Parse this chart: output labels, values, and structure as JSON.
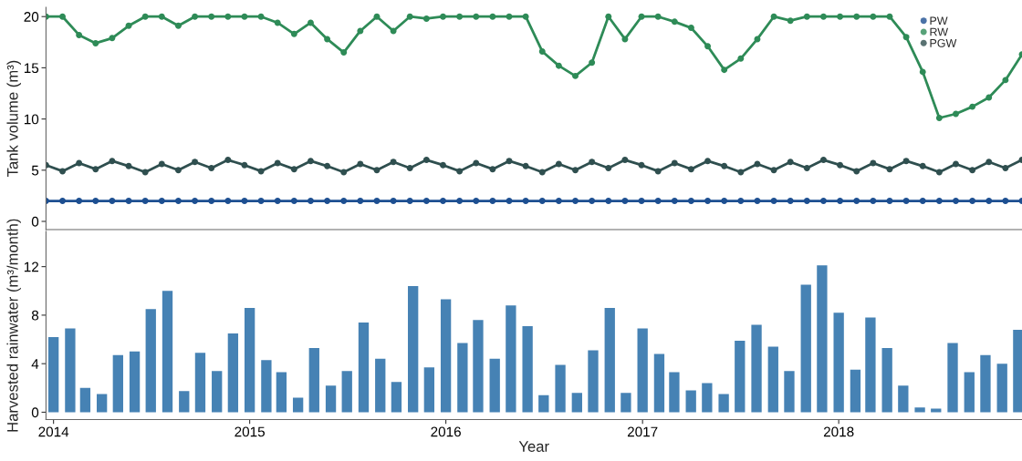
{
  "chart_data": [
    {
      "type": "line",
      "ylabel": "Tank volume (m³)",
      "categories": [
        null,
        null,
        null,
        null,
        null,
        null,
        null,
        null,
        null,
        null,
        null,
        null,
        null,
        null,
        null,
        null,
        null,
        null,
        null,
        null,
        null,
        null,
        null,
        null,
        null,
        null,
        null,
        null,
        null,
        null,
        null,
        null,
        null,
        null,
        null,
        null,
        null,
        null,
        null,
        null,
        null,
        null,
        null,
        null,
        null,
        null,
        null,
        null,
        null,
        null,
        null,
        null,
        null,
        null,
        null,
        null,
        null,
        null,
        null,
        null
      ],
      "ylim": [
        -0.8,
        20.9
      ],
      "yticks": [
        0,
        5,
        10,
        15,
        20
      ],
      "tick_labels": "y",
      "legend": "top right",
      "marker": "circle",
      "line_style": "solid",
      "series": [
        {
          "name": "PW",
          "color": "#1d4f91",
          "values": [
            2,
            2,
            2,
            2,
            2,
            2,
            2,
            2,
            2,
            2,
            2,
            2,
            2,
            2,
            2,
            2,
            2,
            2,
            2,
            2,
            2,
            2,
            2,
            2,
            2,
            2,
            2,
            2,
            2,
            2,
            2,
            2,
            2,
            2,
            2,
            2,
            2,
            2,
            2,
            2,
            2,
            2,
            2,
            2,
            2,
            2,
            2,
            2,
            2,
            2,
            2,
            2,
            2,
            2,
            2,
            2,
            2,
            2,
            2,
            2
          ]
        },
        {
          "name": "RW",
          "color": "#2e8b57",
          "values": [
            20,
            20,
            18.2,
            17.4,
            17.9,
            19.1,
            20,
            20,
            19.1,
            20,
            20,
            20,
            20,
            20,
            19.4,
            18.3,
            19.4,
            17.8,
            16.5,
            18.6,
            20,
            18.6,
            20,
            19.8,
            20,
            20,
            20,
            20,
            20,
            20,
            16.6,
            15.2,
            14.2,
            15.5,
            20,
            17.8,
            20,
            20,
            19.5,
            18.9,
            17.1,
            14.8,
            15.9,
            17.8,
            20,
            19.6,
            20,
            20,
            20,
            20,
            20,
            20,
            18.0,
            14.6,
            10.1,
            10.5,
            11.2,
            12.1,
            13.8,
            16.3
          ]
        },
        {
          "name": "PGW",
          "color": "#2f4f4f",
          "values": [
            5.5,
            4.9,
            5.7,
            5.1,
            5.9,
            5.4,
            4.8,
            5.6,
            5.0,
            5.8,
            5.2,
            6.0,
            5.5,
            4.9,
            5.7,
            5.1,
            5.9,
            5.4,
            4.8,
            5.6,
            5.0,
            5.8,
            5.2,
            6.0,
            5.5,
            4.9,
            5.7,
            5.1,
            5.9,
            5.4,
            4.8,
            5.6,
            5.0,
            5.8,
            5.2,
            6.0,
            5.5,
            4.9,
            5.7,
            5.1,
            5.9,
            5.4,
            4.8,
            5.6,
            5.0,
            5.8,
            5.2,
            6.0,
            5.5,
            4.9,
            5.7,
            5.1,
            5.9,
            5.4,
            4.8,
            5.6,
            5.0,
            5.8,
            5.2,
            6.0
          ]
        }
      ]
    },
    {
      "type": "bar",
      "xlabel": "Year",
      "ylabel": "Harvested rainwater (m³/month)",
      "color": "#4682b4",
      "x": [
        "2014-01",
        "2014-02",
        "2014-03",
        "2014-04",
        "2014-05",
        "2014-06",
        "2014-07",
        "2014-08",
        "2014-09",
        "2014-10",
        "2014-11",
        "2014-12",
        "2015-01",
        "2015-02",
        "2015-03",
        "2015-04",
        "2015-05",
        "2015-06",
        "2015-07",
        "2015-08",
        "2015-09",
        "2015-10",
        "2015-11",
        "2015-12",
        "2016-01",
        "2016-02",
        "2016-03",
        "2016-04",
        "2016-05",
        "2016-06",
        "2016-07",
        "2016-08",
        "2016-09",
        "2016-10",
        "2016-11",
        "2016-12",
        "2017-01",
        "2017-02",
        "2017-03",
        "2017-04",
        "2017-05",
        "2017-06",
        "2017-07",
        "2017-08",
        "2017-09",
        "2017-10",
        "2017-11",
        "2017-12",
        "2018-01",
        "2018-02",
        "2018-03",
        "2018-04",
        "2018-05",
        "2018-06",
        "2018-07",
        "2018-08",
        "2018-09",
        "2018-10",
        "2018-11",
        "2018-12"
      ],
      "values": [
        6.2,
        6.9,
        2.0,
        1.5,
        4.7,
        5.0,
        8.5,
        10.0,
        1.75,
        4.9,
        3.4,
        6.5,
        8.6,
        4.3,
        3.3,
        1.2,
        5.3,
        2.2,
        3.4,
        7.4,
        4.4,
        2.5,
        10.4,
        3.7,
        9.3,
        5.7,
        7.6,
        4.4,
        8.8,
        7.1,
        1.4,
        3.9,
        1.6,
        5.1,
        8.6,
        1.6,
        6.9,
        4.8,
        3.3,
        1.8,
        2.4,
        1.5,
        5.9,
        7.2,
        5.4,
        3.4,
        10.5,
        12.1,
        8.2,
        3.5,
        7.8,
        5.3,
        2.2,
        0.4,
        0.3,
        5.7,
        3.3,
        4.7,
        4.0,
        6.8
      ],
      "xlim": [
        "2013-12-18",
        "2018-12-08"
      ],
      "xticks": [
        {
          "value": "2014-01-01",
          "label": "2014"
        },
        {
          "value": "2015-01-01",
          "label": "2015"
        },
        {
          "value": "2016-01-01",
          "label": "2016"
        },
        {
          "value": "2017-01-01",
          "label": "2017"
        },
        {
          "value": "2018-01-01",
          "label": "2018"
        }
      ],
      "ylim": [
        -0.6,
        14.9
      ],
      "yticks": [
        0,
        4,
        8,
        12
      ]
    }
  ]
}
